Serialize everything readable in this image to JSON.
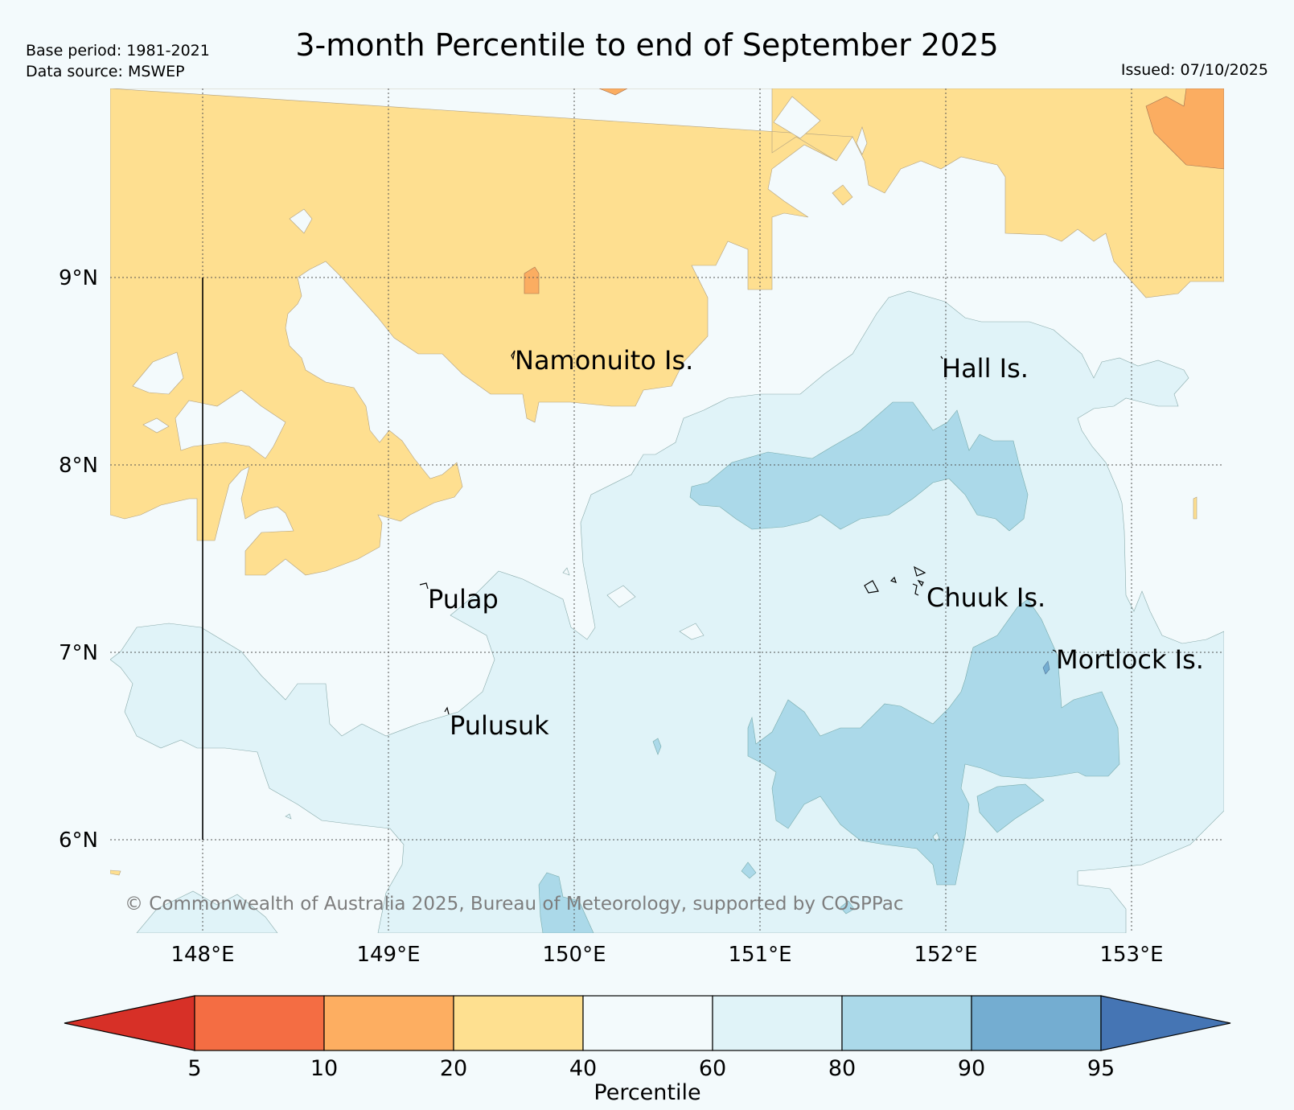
{
  "header": {
    "base_period": "Base period: 1981-2021",
    "data_source": "Data source: MSWEP",
    "title": "3-month Percentile to end of September 2025",
    "issued": "Issued: 07/10/2025"
  },
  "map": {
    "latitude_labels": [
      "9°N",
      "8°N",
      "7°N",
      "6°N"
    ],
    "longitude_labels": [
      "148°E",
      "149°E",
      "150°E",
      "151°E",
      "152°E",
      "153°E"
    ],
    "places": [
      {
        "name": "Namonuito Is."
      },
      {
        "name": "Hall Is."
      },
      {
        "name": "Pulap"
      },
      {
        "name": "Chuuk Is."
      },
      {
        "name": "Mortlock Is."
      },
      {
        "name": "Pulusuk"
      }
    ],
    "copyright": "© Commonwealth of Australia 2025, Bureau of Meteorology, supported by COSPPac",
    "region_colors": {
      "p20_40": "#fedf90",
      "p10_20": "#fbad61",
      "p40_60": "#f3fafc",
      "p60_80": "#e0f3f8",
      "p80_90": "#abd9e9",
      "p90_95": "#74add1"
    }
  },
  "colorbar": {
    "label": "Percentile",
    "ticks": [
      "5",
      "10",
      "20",
      "40",
      "60",
      "80",
      "90",
      "95"
    ],
    "colors": [
      "#d73027",
      "#f46d43",
      "#fdae61",
      "#fee090",
      "#f3fafc",
      "#e0f3f8",
      "#abd9e9",
      "#74add1",
      "#4575b4"
    ]
  }
}
